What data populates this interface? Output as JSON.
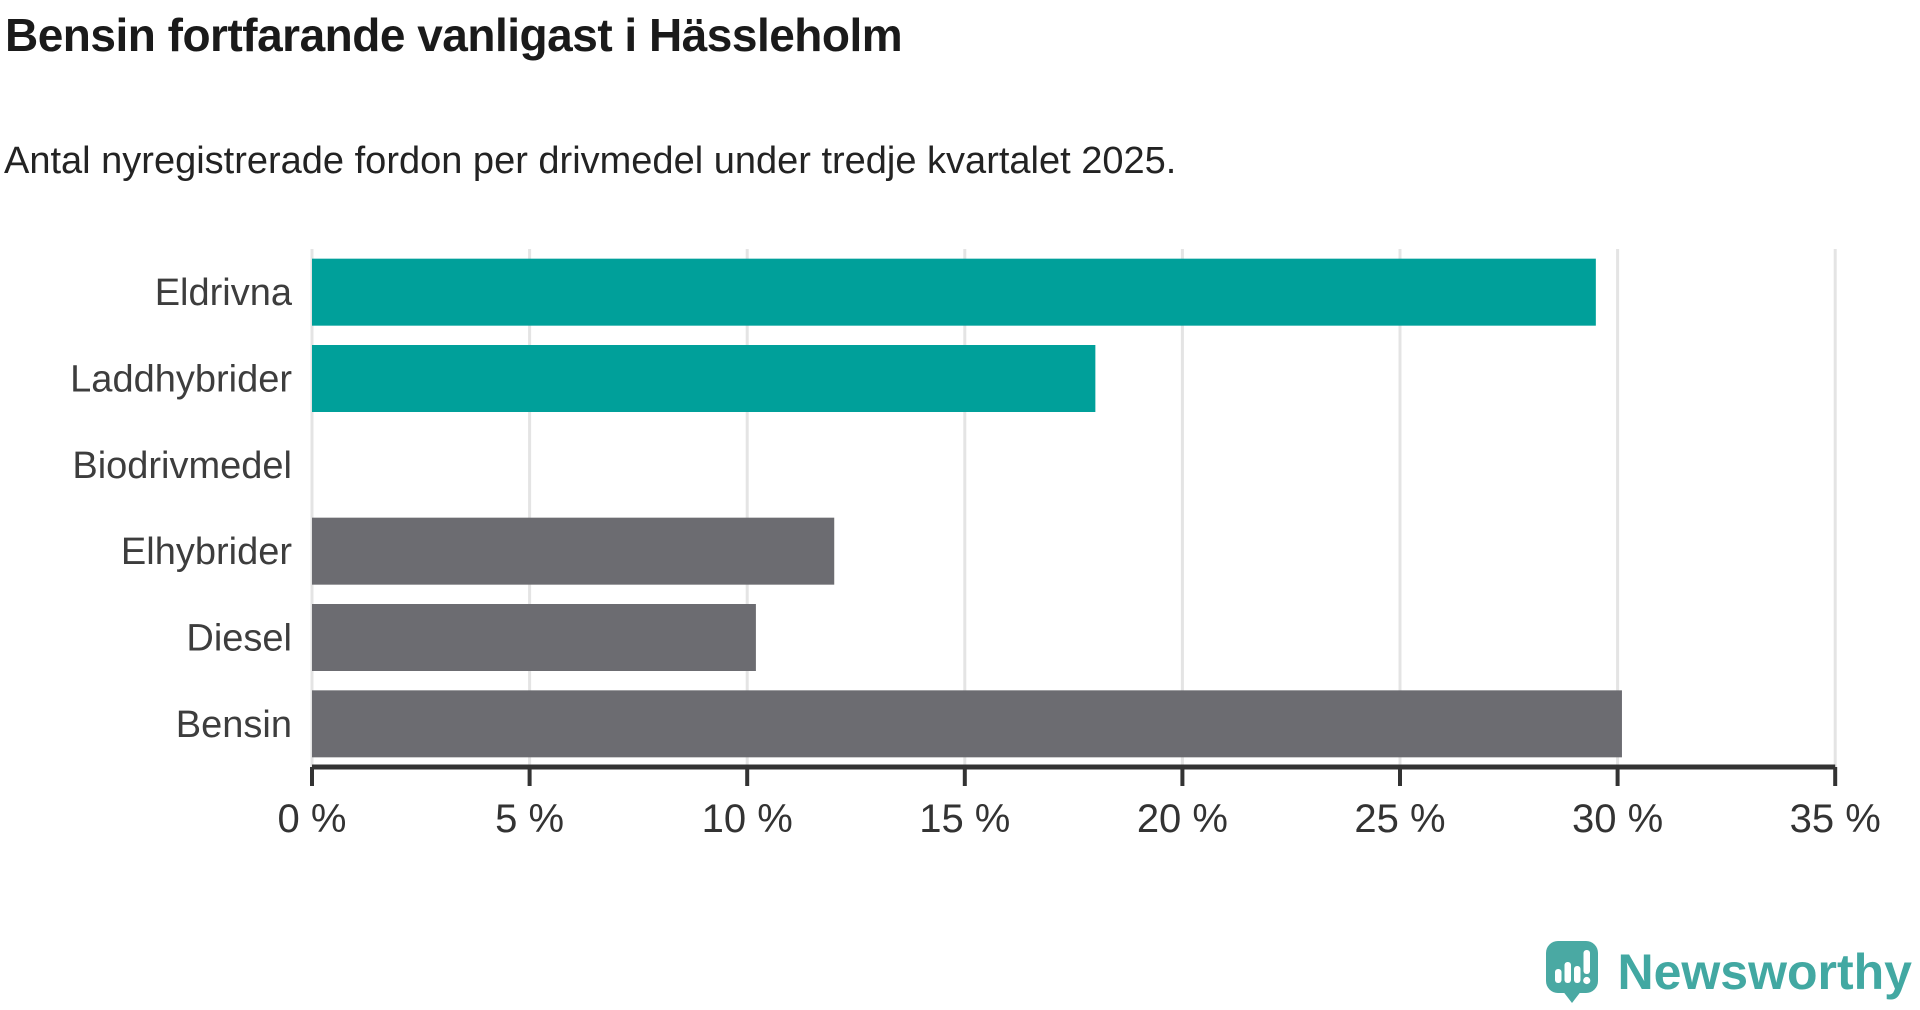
{
  "header": {
    "title": "Bensin fortfarande vanligast i Hässleholm",
    "subtitle": "Antal nyregistrerade fordon per drivmedel under tredje kvartalet 2025."
  },
  "chart_data": {
    "type": "bar",
    "orientation": "horizontal",
    "title": "Bensin fortfarande vanligast i Hässleholm",
    "subtitle": "Antal nyregistrerade fordon per drivmedel under tredje kvartalet 2025.",
    "categories": [
      "Eldrivna",
      "Laddhybrider",
      "Biodrivmedel",
      "Elhybrider",
      "Diesel",
      "Bensin"
    ],
    "values": [
      29.5,
      18.0,
      0,
      12.0,
      10.2,
      30.1
    ],
    "unit": "%",
    "bar_colors": [
      "#00a09a",
      "#00a09a",
      "#6c6c71",
      "#6c6c71",
      "#6c6c71",
      "#6c6c71"
    ],
    "highlight_color": "#00a09a",
    "default_color": "#6c6c71",
    "xlim": [
      0,
      35
    ],
    "x_ticks": [
      0,
      5,
      10,
      15,
      20,
      25,
      30,
      35
    ],
    "x_tick_labels": [
      "0 %",
      "5 %",
      "10 %",
      "15 %",
      "20 %",
      "25 %",
      "30 %",
      "35 %"
    ],
    "xlabel": "",
    "ylabel": "",
    "grid": true,
    "legend": "none"
  },
  "style_colors": {
    "grid_line": "#e4e4e4",
    "axis_line": "#333333",
    "tick_text": "#333333",
    "category_text": "#3d3d3d"
  },
  "branding": {
    "name": "Newsworthy",
    "color": "#42a8a2"
  }
}
